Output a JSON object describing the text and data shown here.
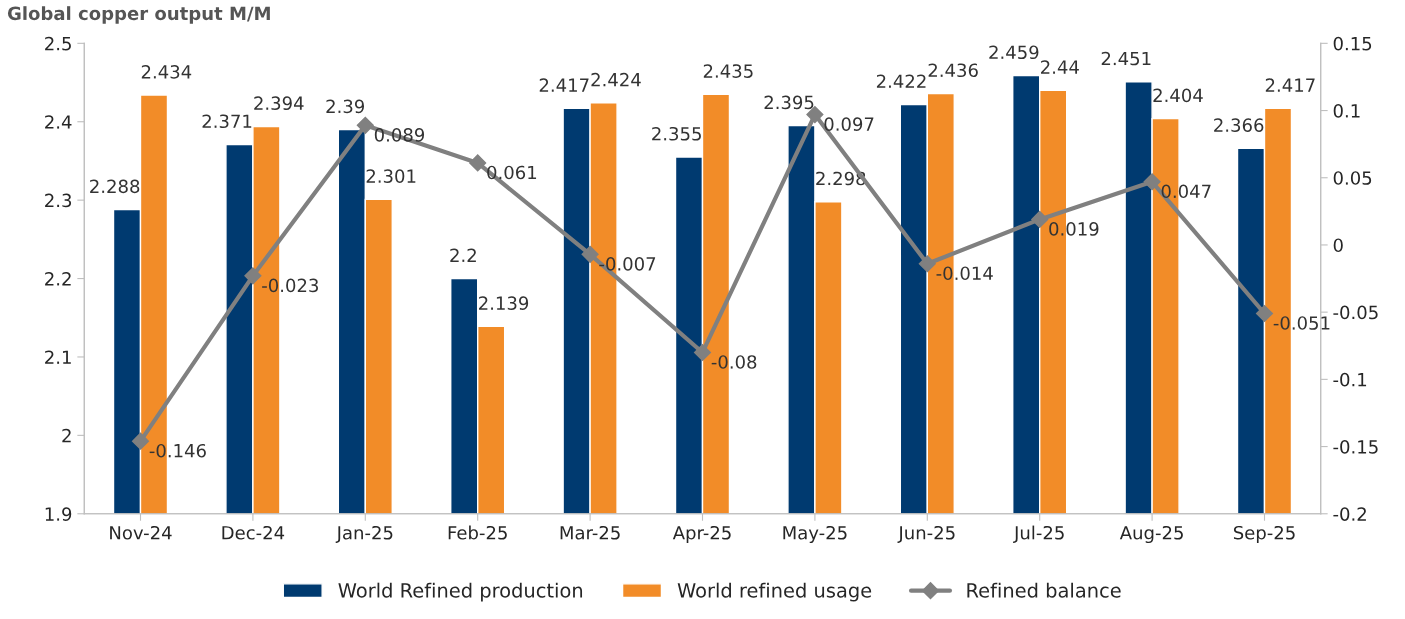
{
  "chart_data": {
    "type": "bar",
    "title": "Global copper output M/M",
    "categories": [
      "Nov-24",
      "Dec-24",
      "Jan-25",
      "Feb-25",
      "Mar-25",
      "Apr-25",
      "May-25",
      "Jun-25",
      "Jul-25",
      "Aug-25",
      "Sep-25"
    ],
    "series": [
      {
        "name": "World Refined production",
        "color": "#003a70",
        "values": [
          2.288,
          2.371,
          2.39,
          2.2,
          2.417,
          2.355,
          2.395,
          2.422,
          2.459,
          2.451,
          2.366
        ]
      },
      {
        "name": "World refined usage",
        "color": "#f28c28",
        "values": [
          2.434,
          2.394,
          2.301,
          2.139,
          2.424,
          2.435,
          2.298,
          2.436,
          2.44,
          2.404,
          2.417
        ]
      },
      {
        "name": "Refined balance",
        "type": "line",
        "axis": "y2",
        "color": "#808080",
        "marker": "diamond",
        "values": [
          -0.146,
          -0.023,
          0.089,
          0.061,
          -0.007,
          -0.08,
          0.097,
          -0.014,
          0.019,
          0.047,
          -0.051
        ]
      }
    ],
    "ylim": [
      1.9,
      2.5
    ],
    "yticks": [
      1.9,
      2,
      2.1,
      2.2,
      2.3,
      2.4,
      2.5
    ],
    "y2lim": [
      -0.2,
      0.15
    ],
    "y2ticks": [
      -0.2,
      -0.15,
      -0.1,
      -0.05,
      0,
      0.05,
      0.1,
      0.15
    ],
    "data_labels": true,
    "legend": "bottom",
    "grid": false
  }
}
